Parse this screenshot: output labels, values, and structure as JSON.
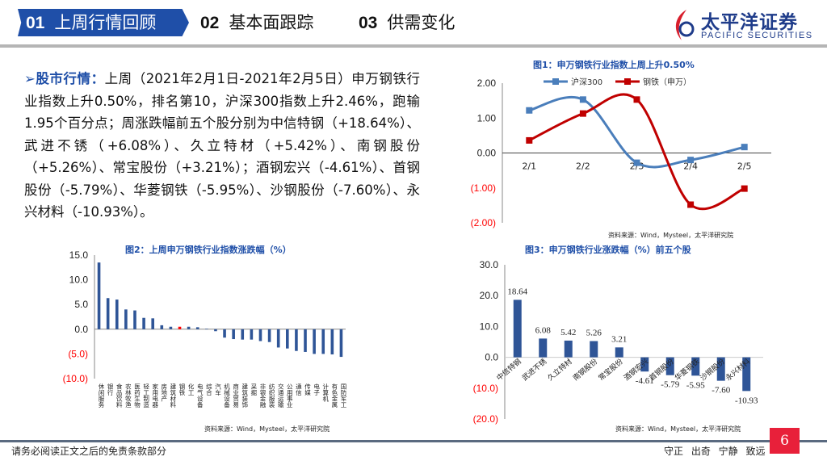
{
  "header": {
    "tabs": [
      {
        "num": "01",
        "label": "上周行情回顾",
        "active": true
      },
      {
        "num": "02",
        "label": "基本面跟踪"
      },
      {
        "num": "03",
        "label": "供需变化"
      }
    ],
    "logo": {
      "cn": "太平洋证券",
      "en": "PACIFIC SECURITIES"
    }
  },
  "summary": {
    "heading": "股市行情：",
    "text": "上周（2021年2月1日-2021年2月5日）申万钢铁行业指数上升0.50%，排名第10，沪深300指数上升2.46%，跑输1.95个百分点；周涨跌幅前五个股分别为中信特钢（+18.64%）、武进不锈（+6.08%）、久立特材（+5.42%）、南钢股份（+5.26%）、常宝股份（+3.21%）；酒钢宏兴（-4.61%）、首钢股份（-5.79%）、华菱钢铁（-5.95%）、沙钢股份（-7.60%）、永兴材料（-10.93%）。"
  },
  "colors": {
    "accent": "#1f4fa8",
    "bar": "#2f5597",
    "red": "#c00000",
    "highlight": "#ff0000"
  },
  "chart_data": [
    {
      "type": "line",
      "title": "图1：申万钢铁行业指数上周上升0.50%",
      "source": "资料来源：Wind，Mysteel，太平洋研究院",
      "categories": [
        "2/1",
        "2/2",
        "2/3",
        "2/4",
        "2/5"
      ],
      "ylim": [
        -2,
        2
      ],
      "yticks": [
        "2.00",
        "1.00",
        "0.00",
        "(1.00)",
        "(2.00)"
      ],
      "legend": "top",
      "series": [
        {
          "name": "沪深300",
          "color": "#4a7ebb",
          "values": [
            1.22,
            1.53,
            -0.28,
            -0.2,
            0.17
          ]
        },
        {
          "name": "钢铁（申万）",
          "color": "#c00000",
          "values": [
            0.36,
            1.13,
            1.53,
            -1.48,
            -1.02
          ]
        }
      ]
    },
    {
      "type": "bar",
      "title": "图2：上周申万钢铁行业指数涨跌幅（%）",
      "source": "资料来源：Wind，Mysteel，太平洋研究院",
      "ylim": [
        -10,
        15
      ],
      "yticks": [
        "15.0",
        "10.0",
        "5.0",
        "0.0",
        "(5.0)",
        "(10.0)"
      ],
      "categories": [
        "休闲服务",
        "银行",
        "食品饮料",
        "农林牧渔",
        "医药生物",
        "轻工制造",
        "家用电器",
        "房地产",
        "建筑材料",
        "钢铁",
        "化工",
        "电气设备",
        "综合",
        "汽车",
        "机械设备",
        "商业贸易",
        "建筑装饰",
        "采掘",
        "非银金融",
        "纺织服装",
        "交通运输",
        "公用事业",
        "通信",
        "传媒",
        "电子",
        "计算机",
        "有色金属",
        "国防军工"
      ],
      "values": [
        13.5,
        6.3,
        6.0,
        4.0,
        3.8,
        2.3,
        2.2,
        0.8,
        0.5,
        0.5,
        0.5,
        0.4,
        0.1,
        -0.4,
        -1.7,
        -2.0,
        -2.1,
        -2.1,
        -2.4,
        -2.6,
        -3.7,
        -3.9,
        -4.4,
        -4.6,
        -5.0,
        -5.0,
        -5.1,
        -5.6
      ],
      "highlight": "钢铁"
    },
    {
      "type": "bar",
      "title": "图3：申万钢铁行业涨跌幅（%）前五个股",
      "source": "资料来源：Wind，Mysteel，太平洋研究院",
      "ylim": [
        -20,
        30
      ],
      "yticks": [
        "30.0",
        "20.0",
        "10.0",
        "0.0",
        "(10.0)",
        "(20.0)"
      ],
      "categories": [
        "中信特钢",
        "武进不锈",
        "久立特材",
        "南钢股份",
        "常宝股份",
        "酒钢宏兴",
        "首钢股份",
        "华菱钢铁",
        "沙钢股份",
        "永兴材料"
      ],
      "values": [
        18.64,
        6.08,
        5.42,
        5.26,
        3.21,
        -4.61,
        -5.79,
        -5.95,
        -7.6,
        -10.93
      ],
      "labels": [
        "18.64",
        "6.08",
        "5.42",
        "5.26",
        "3.21",
        "-4.61",
        "-5.79",
        "-5.95",
        "-7.60",
        "-10.93"
      ]
    }
  ],
  "footer": {
    "disclaimer": "请务必阅读正文之后的免责条款部分",
    "motto": "守正 出奇 宁静 致远",
    "page": "6"
  }
}
